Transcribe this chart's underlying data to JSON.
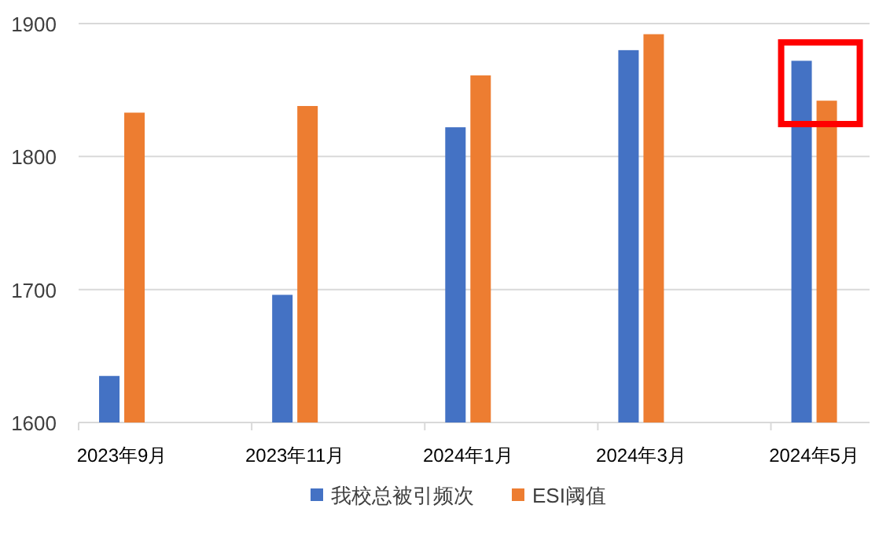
{
  "chart_data": {
    "type": "bar",
    "categories": [
      "2023年9月",
      "2023年11月",
      "2024年1月",
      "2024年3月",
      "2024年5月"
    ],
    "series": [
      {
        "name": "我校总被引频次",
        "color": "#4472c4",
        "values": [
          1635,
          1696,
          1822,
          1880,
          1872
        ]
      },
      {
        "name": "ESI阈值",
        "color": "#ed7d31",
        "values": [
          1833,
          1838,
          1861,
          1892,
          1842
        ]
      }
    ],
    "ylim": [
      1600,
      1900
    ],
    "yticks": [
      1600,
      1700,
      1800,
      1900
    ],
    "grid": "y",
    "legend": "bottom"
  }
}
